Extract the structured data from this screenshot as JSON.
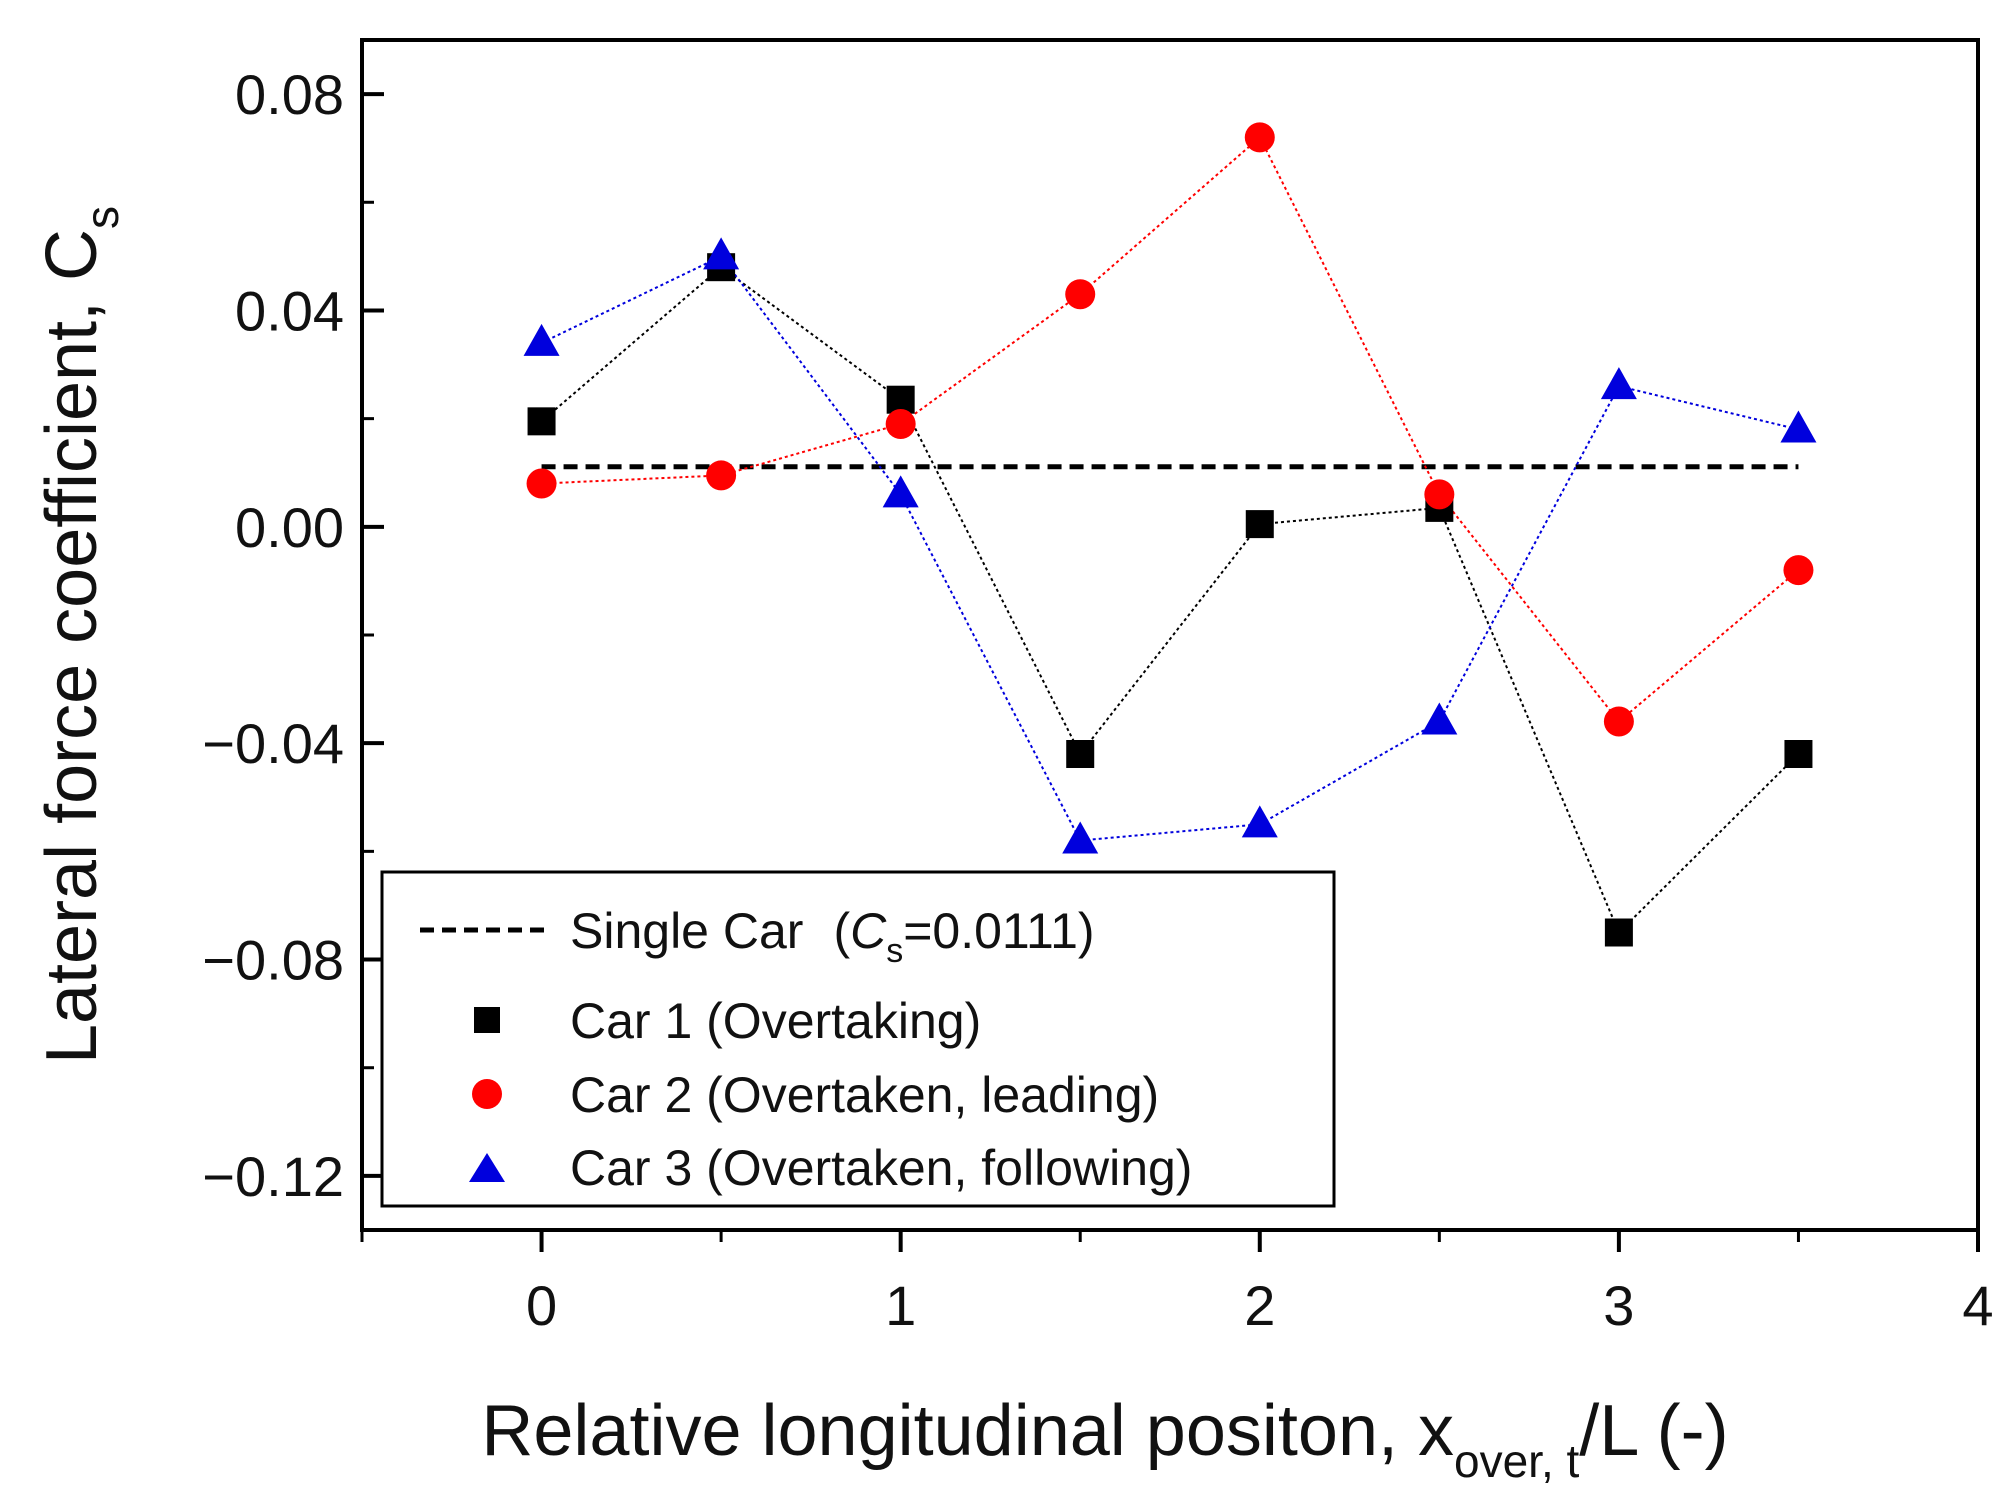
{
  "chart_data": {
    "type": "line",
    "xlabel": {
      "main": "Relative longitudinal positon, x",
      "subscript": "over, t",
      "suffix": "/L (-)"
    },
    "ylabel": {
      "main": "Lateral force coefficient, C",
      "subscript": "s"
    },
    "xlim": [
      -0.5,
      4
    ],
    "ylim": [
      -0.13,
      0.09
    ],
    "xticks": [
      0,
      1,
      2,
      3,
      4
    ],
    "xtick_labels": [
      "0",
      "1",
      "2",
      "3",
      "4"
    ],
    "yticks": [
      0.08,
      0.04,
      0.0,
      -0.04,
      -0.08,
      -0.12
    ],
    "ytick_labels": [
      "0.08",
      "0.04",
      "0.00",
      "−0.04",
      "−0.08",
      "−0.12"
    ],
    "reference_line": {
      "value": 0.0111,
      "x_range": [
        0,
        3.5
      ],
      "legend_label": "Single Car",
      "legend_symbol": "C",
      "legend_symbol_sub": "s",
      "legend_value": "=0.0111)",
      "legend_open": "(",
      "color": "#000000"
    },
    "x": [
      0,
      0.5,
      1,
      1.5,
      2,
      2.5,
      3,
      3.5
    ],
    "series": [
      {
        "name": "Car 1 (Overtaking)",
        "marker": "square",
        "color": "#000000",
        "values": [
          0.0195,
          0.048,
          0.0235,
          -0.042,
          0.0005,
          0.0035,
          -0.075,
          -0.042
        ]
      },
      {
        "name": "Car 2 (Overtaken, leading)",
        "marker": "circle",
        "color": "#ff0000",
        "values": [
          0.008,
          0.0095,
          0.019,
          0.043,
          0.072,
          0.006,
          -0.036,
          -0.008
        ]
      },
      {
        "name": "Car 3 (Overtaken, following)",
        "marker": "triangle",
        "color": "#0000dd",
        "values": [
          0.034,
          0.05,
          0.006,
          -0.058,
          -0.055,
          -0.036,
          0.026,
          0.018
        ]
      }
    ],
    "legend_position": "bottom-left"
  }
}
